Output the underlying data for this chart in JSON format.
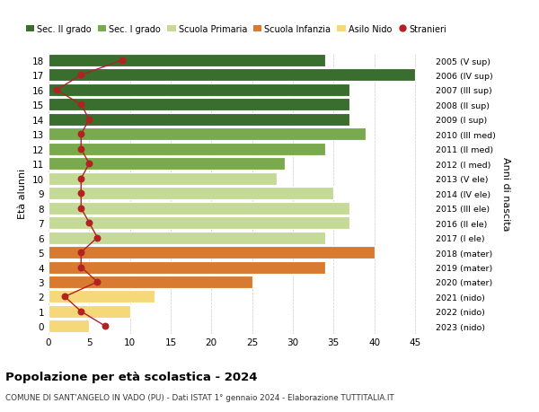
{
  "ages": [
    18,
    17,
    16,
    15,
    14,
    13,
    12,
    11,
    10,
    9,
    8,
    7,
    6,
    5,
    4,
    3,
    2,
    1,
    0
  ],
  "right_labels": [
    "2005 (V sup)",
    "2006 (IV sup)",
    "2007 (III sup)",
    "2008 (II sup)",
    "2009 (I sup)",
    "2010 (III med)",
    "2011 (II med)",
    "2012 (I med)",
    "2013 (V ele)",
    "2014 (IV ele)",
    "2015 (III ele)",
    "2016 (II ele)",
    "2017 (I ele)",
    "2018 (mater)",
    "2019 (mater)",
    "2020 (mater)",
    "2021 (nido)",
    "2022 (nido)",
    "2023 (nido)"
  ],
  "bar_values": [
    34,
    45,
    37,
    37,
    37,
    39,
    34,
    29,
    28,
    35,
    37,
    37,
    34,
    40,
    34,
    25,
    13,
    10,
    5
  ],
  "bar_colors": [
    "#3a6e2f",
    "#3a6e2f",
    "#3a6e2f",
    "#3a6e2f",
    "#3a6e2f",
    "#7aaa4e",
    "#7aaa4e",
    "#7aaa4e",
    "#c5da96",
    "#c5da96",
    "#c5da96",
    "#c5da96",
    "#c5da96",
    "#d87a30",
    "#d87a30",
    "#d87a30",
    "#f5d87a",
    "#f5d87a",
    "#f5d87a"
  ],
  "stranieri_values": [
    9,
    4,
    1,
    4,
    5,
    4,
    4,
    5,
    4,
    4,
    4,
    5,
    6,
    4,
    4,
    6,
    2,
    4,
    7
  ],
  "stranieri_color": "#b22222",
  "legend_labels": [
    "Sec. II grado",
    "Sec. I grado",
    "Scuola Primaria",
    "Scuola Infanzia",
    "Asilo Nido",
    "Stranieri"
  ],
  "legend_colors": [
    "#3a6e2f",
    "#7aaa4e",
    "#c5da96",
    "#d87a30",
    "#f5d87a",
    "#b22222"
  ],
  "ylabel_left": "Età alunni",
  "ylabel_right": "Anni di nascita",
  "title": "Popolazione per età scolastica - 2024",
  "subtitle": "COMUNE DI SANT'ANGELO IN VADO (PU) - Dati ISTAT 1° gennaio 2024 - Elaborazione TUTTITALIA.IT",
  "xlim": [
    0,
    47
  ],
  "xticks": [
    0,
    5,
    10,
    15,
    20,
    25,
    30,
    35,
    40,
    45
  ],
  "background_color": "#ffffff",
  "grid_color": "#cccccc"
}
